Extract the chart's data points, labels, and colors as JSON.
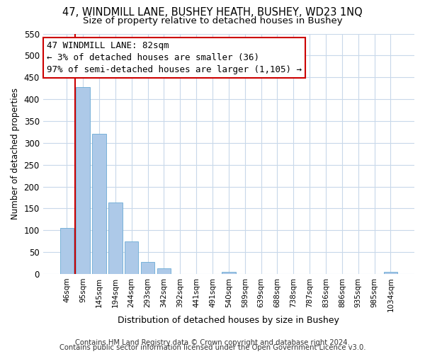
{
  "title": "47, WINDMILL LANE, BUSHEY HEATH, BUSHEY, WD23 1NQ",
  "subtitle": "Size of property relative to detached houses in Bushey",
  "xlabel": "Distribution of detached houses by size in Bushey",
  "ylabel": "Number of detached properties",
  "bar_color": "#adc9e8",
  "bar_edge_color": "#6aaad4",
  "categories": [
    "46sqm",
    "95sqm",
    "145sqm",
    "194sqm",
    "244sqm",
    "293sqm",
    "342sqm",
    "392sqm",
    "441sqm",
    "491sqm",
    "540sqm",
    "589sqm",
    "639sqm",
    "688sqm",
    "738sqm",
    "787sqm",
    "836sqm",
    "886sqm",
    "935sqm",
    "985sqm",
    "1034sqm"
  ],
  "values": [
    105,
    428,
    320,
    163,
    75,
    27,
    13,
    0,
    0,
    0,
    5,
    0,
    0,
    0,
    0,
    0,
    0,
    0,
    0,
    0,
    4
  ],
  "ylim": [
    0,
    550
  ],
  "yticks": [
    0,
    50,
    100,
    150,
    200,
    250,
    300,
    350,
    400,
    450,
    500,
    550
  ],
  "vline_color": "#cc0000",
  "annotation_box_text": "47 WINDMILL LANE: 82sqm\n← 3% of detached houses are smaller (36)\n97% of semi-detached houses are larger (1,105) →",
  "annotation_box_color": "#cc0000",
  "grid_color": "#c8d8ea",
  "background_color": "#ffffff",
  "footer_line1": "Contains HM Land Registry data © Crown copyright and database right 2024.",
  "footer_line2": "Contains public sector information licensed under the Open Government Licence v3.0.",
  "title_fontsize": 10.5,
  "subtitle_fontsize": 9.5,
  "annotation_fontsize": 9,
  "footer_fontsize": 7.2,
  "ylabel_fontsize": 8.5,
  "xlabel_fontsize": 9
}
